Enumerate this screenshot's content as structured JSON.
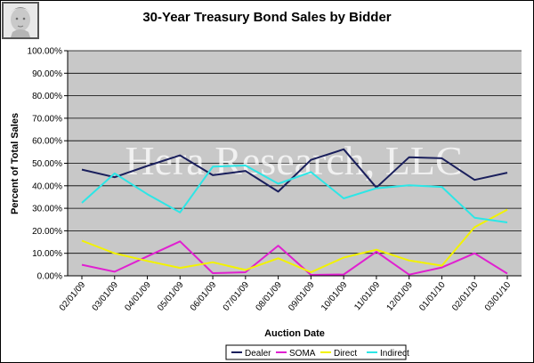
{
  "chart_data": {
    "type": "line",
    "title": "30-Year Treasury Bond Sales by Bidder",
    "watermark": "Hera Research, LLC",
    "xlabel": "Auction Date",
    "ylabel": "Percent of Total Sales",
    "ylim": [
      0,
      100
    ],
    "y_tick_labels": [
      "0.00%",
      "10.00%",
      "20.00%",
      "30.00%",
      "40.00%",
      "50.00%",
      "60.00%",
      "70.00%",
      "80.00%",
      "90.00%",
      "100.00%"
    ],
    "categories": [
      "02/01/09",
      "03/01/09",
      "04/01/09",
      "05/01/09",
      "06/01/09",
      "07/01/09",
      "08/01/09",
      "09/01/09",
      "10/01/09",
      "11/01/09",
      "12/01/09",
      "01/01/10",
      "02/01/10",
      "03/01/10"
    ],
    "grid": true,
    "legend_position": "bottom-right",
    "series": [
      {
        "name": "Dealer",
        "color": "#1a1f5c",
        "values": [
          47.2,
          43.8,
          48.8,
          53.5,
          44.7,
          46.6,
          37.4,
          51.5,
          56.2,
          39.2,
          52.7,
          52.2,
          42.6,
          45.8
        ]
      },
      {
        "name": "SOMA",
        "color": "#e020d0",
        "values": [
          4.9,
          1.8,
          8.6,
          15.3,
          1.2,
          1.6,
          13.4,
          0.4,
          0.6,
          10.7,
          0.5,
          3.7,
          10.0,
          1.0
        ]
      },
      {
        "name": "Direct",
        "color": "#f2f200",
        "values": [
          15.6,
          10.0,
          6.6,
          3.5,
          6.0,
          2.6,
          7.8,
          1.6,
          8.1,
          11.6,
          6.8,
          4.5,
          21.6,
          29.4
        ]
      },
      {
        "name": "Indirect",
        "color": "#2ce6e6",
        "values": [
          32.4,
          45.5,
          36.3,
          28.2,
          48.5,
          49.0,
          40.9,
          46.1,
          34.4,
          38.9,
          40.2,
          39.5,
          25.8,
          23.7
        ]
      }
    ]
  }
}
